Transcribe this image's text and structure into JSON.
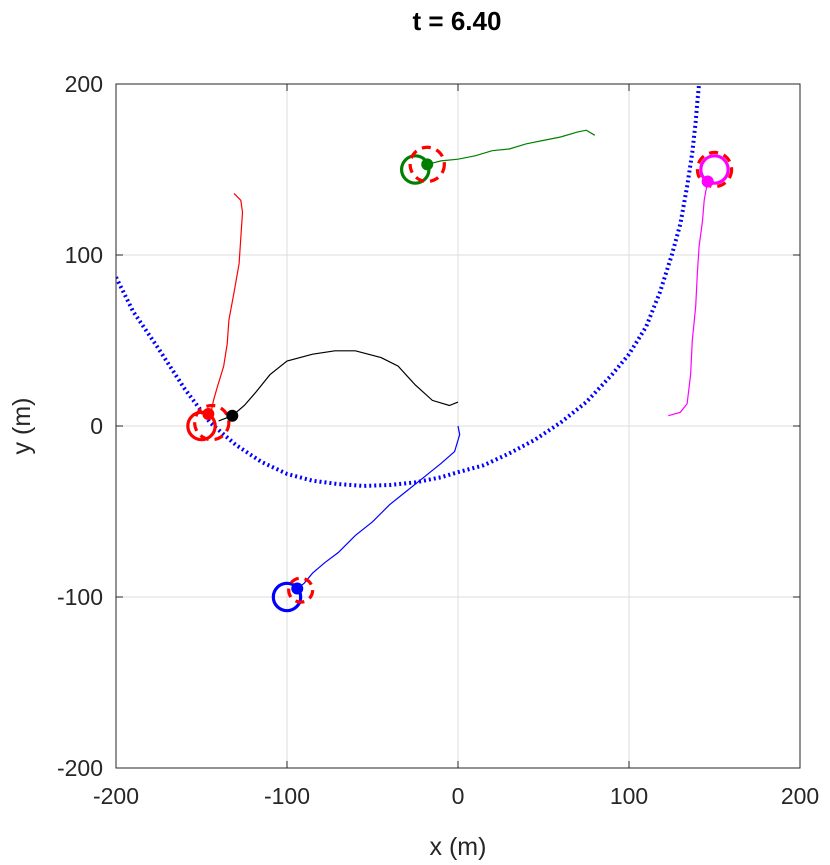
{
  "chart_data": {
    "type": "line",
    "title": "t = 6.40",
    "xlabel": "x (m)",
    "ylabel": "y (m)",
    "xlim": [
      -200,
      200
    ],
    "ylim": [
      -200,
      200
    ],
    "xticks": [
      -200,
      -100,
      0,
      100,
      200
    ],
    "yticks": [
      -200,
      -100,
      0,
      100,
      200
    ],
    "xtick_labels": [
      "-200",
      "-100",
      "0",
      "100",
      "200"
    ],
    "ytick_labels": [
      "-200",
      "-100",
      "0",
      "100",
      "200"
    ],
    "grid": true,
    "legend": "none",
    "boundary_arc": {
      "color": "#0000ff",
      "style": "dotted",
      "points": [
        [
          -200,
          87
        ],
        [
          -190,
          67
        ],
        [
          -175,
          45
        ],
        [
          -160,
          22
        ],
        [
          -145,
          2
        ],
        [
          -130,
          -11
        ],
        [
          -115,
          -21
        ],
        [
          -100,
          -28
        ],
        [
          -85,
          -32
        ],
        [
          -70,
          -34
        ],
        [
          -55,
          -35
        ],
        [
          -40,
          -34.5
        ],
        [
          -25,
          -33
        ],
        [
          -10,
          -30
        ],
        [
          0,
          -27
        ],
        [
          15,
          -23
        ],
        [
          30,
          -16
        ],
        [
          45,
          -8
        ],
        [
          60,
          2
        ],
        [
          75,
          14
        ],
        [
          90,
          30
        ],
        [
          100,
          42
        ],
        [
          110,
          58
        ],
        [
          118,
          78
        ],
        [
          125,
          100
        ],
        [
          130,
          118
        ],
        [
          134,
          140
        ],
        [
          137,
          160
        ],
        [
          139,
          178
        ],
        [
          140,
          190
        ],
        [
          141,
          200
        ]
      ]
    },
    "series": [
      {
        "color": "#ff0000",
        "trajectory": [
          [
            -131,
            136
          ],
          [
            -127,
            132
          ],
          [
            -126,
            125
          ],
          [
            -127,
            110
          ],
          [
            -128,
            95
          ],
          [
            -131,
            78
          ],
          [
            -134,
            62
          ],
          [
            -135,
            48
          ],
          [
            -137,
            35
          ],
          [
            -141,
            22
          ],
          [
            -143,
            15
          ],
          [
            -144,
            10
          ],
          [
            -146,
            7
          ]
        ],
        "agent": [
          -146,
          7
        ],
        "target": [
          -150,
          0
        ],
        "target_radius": 8,
        "estimate": [
          -144,
          2
        ],
        "estimate_radius": 10
      },
      {
        "color": "#008000",
        "trajectory": [
          [
            80,
            170
          ],
          [
            75,
            173
          ],
          [
            70,
            172
          ],
          [
            60,
            169
          ],
          [
            50,
            167
          ],
          [
            40,
            165
          ],
          [
            30,
            162
          ],
          [
            20,
            161
          ],
          [
            10,
            158
          ],
          [
            0,
            156
          ],
          [
            -10,
            155
          ],
          [
            -18,
            153
          ]
        ],
        "agent": [
          -18,
          153
        ],
        "target": [
          -25,
          150
        ],
        "target_radius": 8,
        "estimate": [
          -18,
          153
        ],
        "estimate_radius": 10
      },
      {
        "color": "#ff00ff",
        "trajectory": [
          [
            123,
            6
          ],
          [
            130,
            8
          ],
          [
            134,
            13
          ],
          [
            136,
            30
          ],
          [
            137,
            50
          ],
          [
            139,
            70
          ],
          [
            140,
            90
          ],
          [
            141,
            105
          ],
          [
            143,
            120
          ],
          [
            144,
            132
          ],
          [
            145,
            138
          ],
          [
            146,
            142
          ]
        ],
        "agent": [
          146,
          143
        ],
        "target": [
          150,
          150
        ],
        "target_radius": 8,
        "estimate": [
          150,
          150
        ],
        "estimate_radius": 10
      },
      {
        "color": "#0000ff",
        "trajectory": [
          [
            0,
            0
          ],
          [
            1,
            -5
          ],
          [
            -2,
            -15
          ],
          [
            -10,
            -22
          ],
          [
            -20,
            -30
          ],
          [
            -30,
            -38
          ],
          [
            -40,
            -46
          ],
          [
            -50,
            -56
          ],
          [
            -60,
            -64
          ],
          [
            -70,
            -74
          ],
          [
            -78,
            -80
          ],
          [
            -85,
            -86
          ],
          [
            -90,
            -92
          ],
          [
            -94,
            -95
          ]
        ],
        "agent": [
          -94,
          -95
        ],
        "target": [
          -100,
          -100
        ],
        "target_radius": 8,
        "estimate": [
          -92,
          -96
        ],
        "estimate_radius": 7
      },
      {
        "color": "#000000",
        "trajectory": [
          [
            0,
            14
          ],
          [
            -5,
            12
          ],
          [
            -15,
            15
          ],
          [
            -25,
            24
          ],
          [
            -35,
            35
          ],
          [
            -45,
            40
          ],
          [
            -60,
            44
          ],
          [
            -72,
            44
          ],
          [
            -85,
            42
          ],
          [
            -100,
            38
          ],
          [
            -110,
            30
          ],
          [
            -118,
            20
          ],
          [
            -125,
            12
          ],
          [
            -132,
            6
          ],
          [
            -140,
            3
          ]
        ],
        "agent": [
          -132,
          6
        ],
        "target": null,
        "estimate": null
      }
    ]
  }
}
